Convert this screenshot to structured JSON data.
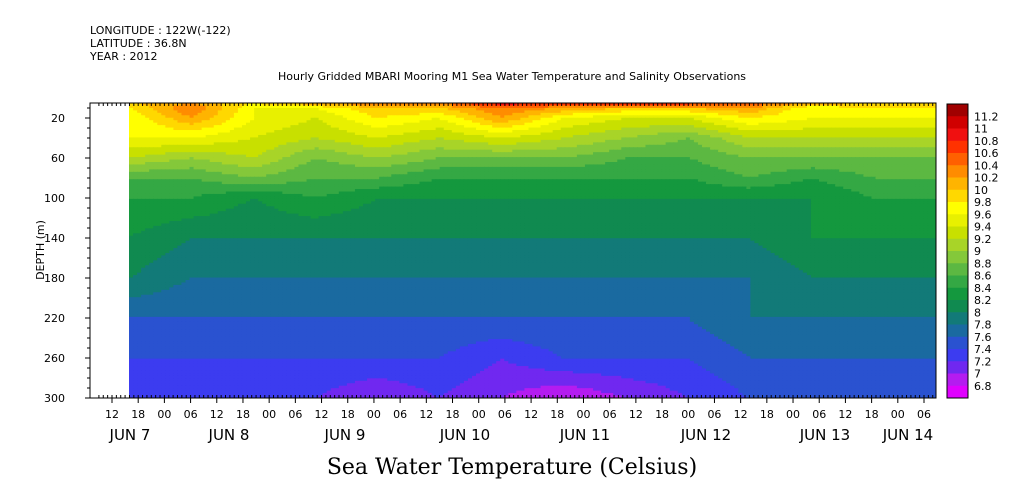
{
  "header": {
    "longitude": "LONGITUDE : 122W(-122)",
    "latitude": "LATITUDE : 36.8N",
    "year": "YEAR : 2012"
  },
  "chart_data": {
    "type": "heatmap",
    "title": "Hourly Gridded MBARI Mooring M1 Sea Water Temperature and Salinity Observations",
    "xlabel": "",
    "ylabel": "DEPTH (m)",
    "bottom_label": "Sea Water Temperature (Celsius)",
    "y_ticks": [
      20,
      60,
      100,
      140,
      180,
      220,
      260,
      300
    ],
    "y_range": [
      300,
      5
    ],
    "x_hour_ticks": [
      "12",
      "18",
      "00",
      "06",
      "12",
      "18",
      "00",
      "06",
      "12",
      "18",
      "00",
      "06",
      "12",
      "18",
      "00",
      "06",
      "12",
      "18",
      "00",
      "06",
      "12",
      "18",
      "00",
      "06",
      "12",
      "18",
      "00",
      "06",
      "12",
      "18",
      "00",
      "06"
    ],
    "x_day_labels": [
      "JUN  7",
      "JUN  8",
      "JUN  9",
      "JUN 10",
      "JUN 11",
      "JUN 12",
      "JUN 13",
      "JUN 14"
    ],
    "colorbar_levels": [
      "11.2",
      "11",
      "10.8",
      "10.6",
      "10.4",
      "10.2",
      "10",
      "9.8",
      "9.6",
      "9.4",
      "9.2",
      "9",
      "8.8",
      "8.6",
      "8.4",
      "8.2",
      "8",
      "7.8",
      "7.6",
      "7.4",
      "7.2",
      "7",
      "6.8"
    ],
    "colorbar_colors": [
      "#a00000",
      "#d00000",
      "#f01010",
      "#ff3200",
      "#ff6000",
      "#ff8c00",
      "#ffb400",
      "#ffd800",
      "#ffff00",
      "#e8f000",
      "#c8e000",
      "#a8d428",
      "#84c83a",
      "#5cb842",
      "#34a844",
      "#14983e",
      "#108a50",
      "#127a78",
      "#1a6aa0",
      "#2a52d0",
      "#3c3cf0",
      "#7028f0",
      "#b41cf0",
      "#e000ff"
    ],
    "series": [
      {
        "depth": 5,
        "values": [
          10.0,
          10.2,
          9.8,
          10.2,
          10.4,
          10.4,
          11.0,
          10.8,
          10.8,
          10.8,
          10.6,
          10.2,
          10.0,
          10.0
        ]
      },
      {
        "depth": 10,
        "values": [
          9.8,
          10.4,
          9.6,
          9.6,
          10.0,
          10.0,
          10.4,
          10.2,
          10.0,
          10.0,
          10.2,
          9.6,
          9.8,
          9.8
        ]
      },
      {
        "depth": 20,
        "values": [
          9.6,
          10.2,
          9.6,
          9.4,
          9.8,
          9.6,
          10.2,
          9.6,
          9.4,
          9.4,
          9.8,
          9.6,
          9.6,
          9.6
        ]
      },
      {
        "depth": 40,
        "values": [
          9.6,
          9.6,
          9.4,
          9.2,
          9.4,
          9.2,
          9.4,
          9.2,
          9.0,
          8.8,
          9.2,
          9.2,
          9.2,
          9.2
        ]
      },
      {
        "depth": 60,
        "values": [
          9.2,
          9.0,
          9.2,
          8.8,
          9.0,
          8.8,
          8.8,
          8.8,
          8.6,
          8.6,
          8.8,
          8.8,
          8.8,
          8.8
        ]
      },
      {
        "depth": 80,
        "values": [
          8.6,
          8.6,
          8.8,
          8.6,
          8.6,
          8.4,
          8.4,
          8.4,
          8.4,
          8.4,
          8.6,
          8.4,
          8.6,
          8.6
        ]
      },
      {
        "depth": 100,
        "values": [
          8.4,
          8.4,
          8.2,
          8.4,
          8.2,
          8.2,
          8.2,
          8.2,
          8.2,
          8.2,
          8.2,
          8.2,
          8.4,
          8.4
        ]
      },
      {
        "depth": 140,
        "values": [
          8.2,
          8.0,
          8.0,
          8.0,
          8.0,
          8.0,
          8.0,
          8.0,
          8.0,
          8.0,
          8.0,
          8.2,
          8.2,
          8.2
        ]
      },
      {
        "depth": 180,
        "values": [
          8.0,
          7.8,
          7.8,
          7.8,
          7.8,
          7.8,
          7.8,
          7.8,
          7.8,
          7.8,
          7.8,
          8.0,
          8.0,
          8.0
        ]
      },
      {
        "depth": 220,
        "values": [
          7.6,
          7.6,
          7.6,
          7.6,
          7.6,
          7.6,
          7.6,
          7.6,
          7.6,
          7.6,
          7.8,
          7.8,
          7.8,
          7.8
        ]
      },
      {
        "depth": 260,
        "values": [
          7.4,
          7.4,
          7.4,
          7.4,
          7.4,
          7.4,
          7.2,
          7.4,
          7.4,
          7.4,
          7.6,
          7.6,
          7.6,
          7.6
        ]
      },
      {
        "depth": 300,
        "values": [
          7.2,
          7.2,
          7.2,
          7.2,
          7.0,
          7.2,
          7.0,
          6.8,
          7.0,
          7.2,
          7.4,
          7.4,
          7.4,
          7.4
        ]
      }
    ]
  }
}
